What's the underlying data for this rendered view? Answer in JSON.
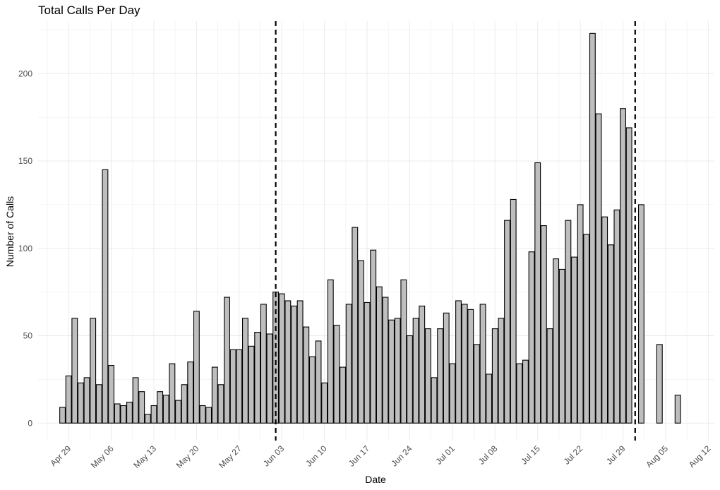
{
  "chart_data": {
    "type": "bar",
    "title": "Total Calls Per Day",
    "xlabel": "Date",
    "ylabel": "Number of Calls",
    "x_axis": {
      "type": "date",
      "range": [
        "2024-04-24",
        "2024-08-13"
      ],
      "tick_labels": [
        "Apr 29",
        "May 06",
        "May 13",
        "May 20",
        "May 27",
        "Jun 03",
        "Jun 10",
        "Jun 17",
        "Jun 24",
        "Jul 01",
        "Jul 08",
        "Jul 15",
        "Jul 22",
        "Jul 29",
        "Aug 05",
        "Aug 12"
      ],
      "tick_dates": [
        "2024-04-29",
        "2024-05-06",
        "2024-05-13",
        "2024-05-20",
        "2024-05-27",
        "2024-06-03",
        "2024-06-10",
        "2024-06-17",
        "2024-06-24",
        "2024-07-01",
        "2024-07-08",
        "2024-07-15",
        "2024-07-22",
        "2024-07-29",
        "2024-08-05",
        "2024-08-12"
      ],
      "tick_label_rotation": 45
    },
    "y_axis": {
      "ylim": [
        -10,
        230
      ],
      "ticks": [
        0,
        50,
        100,
        150,
        200
      ]
    },
    "grid": true,
    "vertical_lines": [
      {
        "date": "2024-06-02",
        "style": "dashed",
        "color": "#000000"
      },
      {
        "date": "2024-07-31",
        "style": "dashed",
        "color": "#000000"
      }
    ],
    "bar_fill": "#bebebe",
    "bar_outline": "#000000",
    "x": [
      "2024-04-28",
      "2024-04-29",
      "2024-04-30",
      "2024-05-01",
      "2024-05-02",
      "2024-05-03",
      "2024-05-04",
      "2024-05-05",
      "2024-05-06",
      "2024-05-07",
      "2024-05-08",
      "2024-05-09",
      "2024-05-10",
      "2024-05-11",
      "2024-05-12",
      "2024-05-13",
      "2024-05-14",
      "2024-05-15",
      "2024-05-16",
      "2024-05-17",
      "2024-05-18",
      "2024-05-19",
      "2024-05-20",
      "2024-05-21",
      "2024-05-22",
      "2024-05-23",
      "2024-05-24",
      "2024-05-25",
      "2024-05-26",
      "2024-05-27",
      "2024-05-28",
      "2024-05-29",
      "2024-05-30",
      "2024-05-31",
      "2024-06-01",
      "2024-06-02",
      "2024-06-03",
      "2024-06-04",
      "2024-06-05",
      "2024-06-06",
      "2024-06-07",
      "2024-06-08",
      "2024-06-09",
      "2024-06-10",
      "2024-06-11",
      "2024-06-12",
      "2024-06-13",
      "2024-06-14",
      "2024-06-15",
      "2024-06-16",
      "2024-06-17",
      "2024-06-18",
      "2024-06-19",
      "2024-06-20",
      "2024-06-21",
      "2024-06-22",
      "2024-06-23",
      "2024-06-24",
      "2024-06-25",
      "2024-06-26",
      "2024-06-27",
      "2024-06-28",
      "2024-06-29",
      "2024-06-30",
      "2024-07-01",
      "2024-07-02",
      "2024-07-03",
      "2024-07-04",
      "2024-07-05",
      "2024-07-06",
      "2024-07-07",
      "2024-07-08",
      "2024-07-09",
      "2024-07-10",
      "2024-07-11",
      "2024-07-12",
      "2024-07-13",
      "2024-07-14",
      "2024-07-15",
      "2024-07-16",
      "2024-07-17",
      "2024-07-18",
      "2024-07-19",
      "2024-07-20",
      "2024-07-21",
      "2024-07-22",
      "2024-07-23",
      "2024-07-24",
      "2024-07-25",
      "2024-07-26",
      "2024-07-27",
      "2024-07-28",
      "2024-07-29",
      "2024-07-30",
      "2024-08-01",
      "2024-08-04",
      "2024-08-07"
    ],
    "values": [
      9,
      27,
      60,
      23,
      26,
      60,
      22,
      145,
      33,
      11,
      10,
      12,
      26,
      18,
      5,
      10,
      18,
      16,
      34,
      13,
      22,
      35,
      64,
      10,
      9,
      32,
      22,
      72,
      42,
      42,
      60,
      44,
      52,
      68,
      51,
      75,
      74,
      70,
      67,
      70,
      55,
      38,
      47,
      23,
      82,
      56,
      32,
      68,
      112,
      93,
      69,
      99,
      78,
      72,
      59,
      60,
      82,
      50,
      60,
      67,
      54,
      26,
      54,
      63,
      34,
      70,
      68,
      65,
      45,
      68,
      28,
      54,
      60,
      116,
      128,
      34,
      36,
      98,
      149,
      113,
      54,
      94,
      88,
      116,
      95,
      125,
      108,
      223,
      177,
      118,
      102,
      122,
      180,
      169,
      125,
      45,
      16
    ]
  }
}
